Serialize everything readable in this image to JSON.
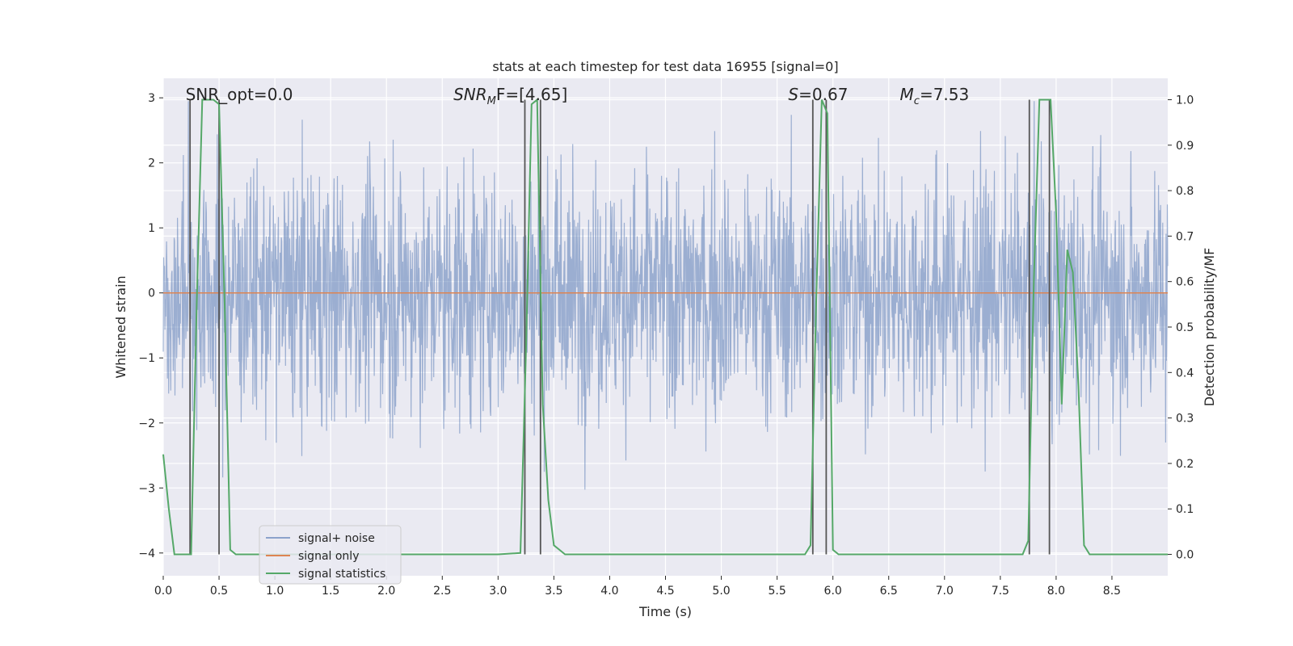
{
  "chart_data": {
    "type": "line",
    "title": "stats at each timestep for test data 16955 [signal=0]",
    "xlabel": "Time (s)",
    "ylabel_left": "Whitened strain",
    "ylabel_right": "Detection probability/MF",
    "xlim": [
      0.0,
      9.0
    ],
    "ylim_left": [
      -4.35,
      3.3
    ],
    "ylim_right": [
      -0.047,
      1.047
    ],
    "xticks": [
      "0.0",
      "0.5",
      "1.0",
      "1.5",
      "2.0",
      "2.5",
      "3.0",
      "3.5",
      "4.0",
      "4.5",
      "5.0",
      "5.5",
      "6.0",
      "6.5",
      "7.0",
      "7.5",
      "8.0",
      "8.5"
    ],
    "yticks_left": [
      "3",
      "2",
      "1",
      "0",
      "−1",
      "−2",
      "−3",
      "−4"
    ],
    "yticks_right": [
      "1.0",
      "0.9",
      "0.8",
      "0.7",
      "0.6",
      "0.5",
      "0.4",
      "0.3",
      "0.2",
      "0.1",
      "0.0"
    ],
    "grid": true,
    "colors": {
      "noise": "#4c72b0",
      "signal": "#dd8452",
      "stats": "#55a868",
      "markers": "#555555",
      "background": "#eaeaf2",
      "grid": "#ffffff"
    },
    "annotations": [
      {
        "text": "SNR_opt=0.0",
        "x": 0.2
      },
      {
        "text": "SNR",
        "sub": "M",
        "suffix": "F=[4.65]",
        "italic": true,
        "x": 2.6
      },
      {
        "text": "S",
        "suffix": "=0.67",
        "italic": true,
        "x": 5.6
      },
      {
        "text": "M",
        "sub": "c",
        "suffix": "=7.53",
        "italic": true,
        "x": 6.6
      }
    ],
    "marker_lines_x": [
      0.24,
      0.5,
      3.24,
      3.38,
      5.82,
      5.94,
      7.76,
      7.94
    ],
    "series": [
      {
        "name": "signal+ noise",
        "kind": "noise",
        "description_stats": {
          "std": 0.95,
          "min": -3.45,
          "max": 2.95
        }
      },
      {
        "name": "signal only",
        "kind": "signal",
        "values_constant": 0
      },
      {
        "name": "signal statistics",
        "kind": "stats",
        "axis": "right",
        "x": [
          0.0,
          0.05,
          0.1,
          0.15,
          0.2,
          0.25,
          0.3,
          0.35,
          0.4,
          0.45,
          0.5,
          0.55,
          0.6,
          0.65,
          0.7,
          1.0,
          1.5,
          2.0,
          2.5,
          3.0,
          3.2,
          3.25,
          3.3,
          3.35,
          3.4,
          3.45,
          3.5,
          3.55,
          3.6,
          4.0,
          5.0,
          5.75,
          5.8,
          5.85,
          5.9,
          5.95,
          6.0,
          6.05,
          6.5,
          7.0,
          7.5,
          7.7,
          7.75,
          7.8,
          7.85,
          7.9,
          7.95,
          8.0,
          8.05,
          8.1,
          8.15,
          8.2,
          8.25,
          8.3,
          8.35,
          8.5,
          9.0
        ],
        "values": [
          0.22,
          0.1,
          0.0,
          0.0,
          0.0,
          0.0,
          0.55,
          1.0,
          1.0,
          1.0,
          0.99,
          0.55,
          0.01,
          0.0,
          0.0,
          0.0,
          0.0,
          0.0,
          0.0,
          0.0,
          0.003,
          0.45,
          0.99,
          1.0,
          0.33,
          0.12,
          0.02,
          0.01,
          0.0,
          0.0,
          0.0,
          0.0,
          0.02,
          0.55,
          1.0,
          0.97,
          0.01,
          0.0,
          0.0,
          0.0,
          0.0,
          0.0,
          0.03,
          0.6,
          1.0,
          1.0,
          1.0,
          0.75,
          0.33,
          0.67,
          0.62,
          0.37,
          0.02,
          0.0,
          0.0,
          0.0,
          0.0
        ]
      }
    ],
    "legend": {
      "placement": "lower-left",
      "entries": [
        "signal+ noise",
        "signal only",
        "signal statistics"
      ]
    }
  }
}
